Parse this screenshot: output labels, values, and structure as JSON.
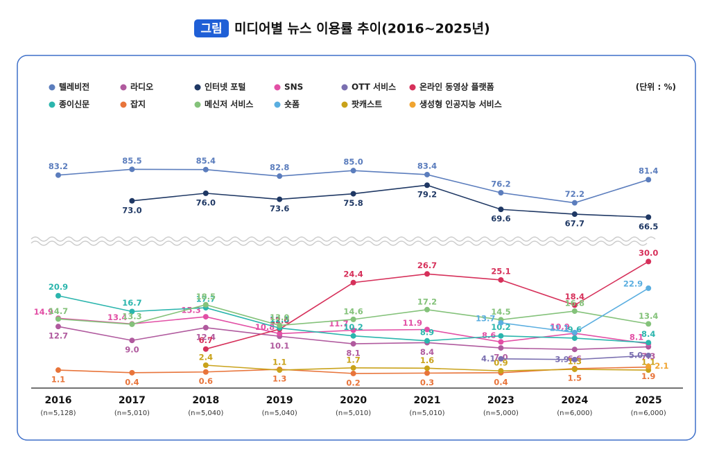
{
  "badge": "그림",
  "chart_data": {
    "type": "line",
    "title": "미디어별 뉴스 이용률 추이(2016~2025년)",
    "unit": "(단위 : %)",
    "categories": [
      "2016",
      "2017",
      "2018",
      "2019",
      "2020",
      "2021",
      "2023",
      "2024",
      "2025"
    ],
    "sample_sizes": [
      "(n=5,128)",
      "(n=5,010)",
      "(n=5,040)",
      "(n=5,040)",
      "(n=5,010)",
      "(n=5,010)",
      "(n=5,000)",
      "(n=6,000)",
      "(n=6,000)"
    ],
    "ylim": [
      0,
      31
    ],
    "ylim_upper": [
      60,
      90
    ],
    "axis_break": true,
    "series": [
      {
        "name": "텔레비전",
        "color": "#5b7dbd",
        "values": [
          83.2,
          85.5,
          85.4,
          82.8,
          85.0,
          83.4,
          76.2,
          72.2,
          81.4
        ],
        "value_labels": [
          "83.2",
          "85.5",
          "85.4",
          "82.8",
          "85.0",
          "83.4",
          "76.2",
          "72.2",
          "81.4"
        ]
      },
      {
        "name": "라디오",
        "color": "#b05a9e",
        "values": [
          12.7,
          9.0,
          12.4,
          10.1,
          8.1,
          8.4,
          7.0,
          6.6,
          7.3
        ],
        "value_labels": [
          "12.7",
          "9.0",
          "12.4",
          "10.1",
          "8.1",
          "8.4",
          "7.0",
          "6.6",
          "7.3"
        ]
      },
      {
        "name": "인터넷 포털",
        "color": "#1f3864",
        "values": [
          null,
          73.0,
          76.0,
          73.6,
          75.8,
          79.2,
          69.6,
          67.7,
          66.5
        ],
        "value_labels": [
          null,
          "73.0",
          "76.0",
          "73.6",
          "75.8",
          "79.2",
          "69.6",
          "67.7",
          "66.5"
        ]
      },
      {
        "name": "SNS",
        "color": "#e24fa5",
        "values": [
          14.9,
          13.4,
          15.3,
          10.8,
          11.7,
          11.9,
          8.6,
          10.9,
          8.1
        ],
        "value_labels": [
          "14.9",
          "13.4",
          "15.3",
          "10.8",
          "11.7",
          "11.9",
          "8.6",
          "10.9",
          "8.1"
        ]
      },
      {
        "name": "OTT 서비스",
        "color": "#7a6fb0",
        "values": [
          null,
          null,
          null,
          null,
          null,
          null,
          4.1,
          3.9,
          5.0
        ],
        "value_labels": [
          null,
          null,
          null,
          null,
          null,
          null,
          "4.1",
          "3.9",
          "5.0"
        ]
      },
      {
        "name": "온라인 동영상 플랫폼",
        "color": "#d6305a",
        "values": [
          null,
          null,
          6.7,
          12.0,
          24.4,
          26.7,
          25.1,
          18.4,
          30.0
        ],
        "value_labels": [
          null,
          null,
          "6.7",
          "12.0",
          "24.4",
          "26.7",
          "25.1",
          "18.4",
          "30.0"
        ]
      },
      {
        "name": "종이신문",
        "color": "#2bb5ad",
        "values": [
          20.9,
          16.7,
          17.7,
          12.3,
          10.2,
          8.9,
          10.2,
          9.6,
          8.4
        ],
        "value_labels": [
          "20.9",
          "16.7",
          "17.7",
          "12.3",
          "10.2",
          "8.9",
          "10.2",
          "9.6",
          "8.4"
        ]
      },
      {
        "name": "잡지",
        "color": "#e8743a",
        "values": [
          1.1,
          0.4,
          0.6,
          1.3,
          0.2,
          0.3,
          0.4,
          1.5,
          1.9
        ],
        "value_labels": [
          "1.1",
          "0.4",
          "0.6",
          "1.3",
          "0.2",
          "0.3",
          "0.4",
          "1.5",
          "1.9"
        ]
      },
      {
        "name": "메신저 서비스",
        "color": "#84c27a",
        "values": [
          14.7,
          13.3,
          18.5,
          13.0,
          14.6,
          17.2,
          14.5,
          16.8,
          13.4
        ],
        "value_labels": [
          "14.7",
          "13.3",
          "18.5",
          "13.0",
          "14.6",
          "17.2",
          "14.5",
          "16.8",
          "13.4"
        ]
      },
      {
        "name": "숏폼",
        "color": "#5aaee0",
        "values": [
          null,
          null,
          null,
          null,
          null,
          null,
          13.7,
          11.1,
          22.9
        ],
        "value_labels": [
          null,
          null,
          null,
          null,
          null,
          null,
          "13.7",
          "11.1",
          "22.9"
        ]
      },
      {
        "name": "팟캐스트",
        "color": "#c9a21a",
        "values": [
          null,
          null,
          2.4,
          1.1,
          1.7,
          1.6,
          0.9,
          1.3,
          1.1
        ],
        "value_labels": [
          null,
          null,
          "2.4",
          "1.1",
          "1.7",
          "1.6",
          "0.9",
          "1.3",
          "1.1"
        ]
      },
      {
        "name": "생성형 인공지능 서비스",
        "color": "#f0a430",
        "values": [
          null,
          null,
          null,
          null,
          null,
          null,
          null,
          null,
          2.1
        ],
        "value_labels": [
          null,
          null,
          null,
          null,
          null,
          null,
          null,
          null,
          "2.1"
        ]
      }
    ]
  }
}
